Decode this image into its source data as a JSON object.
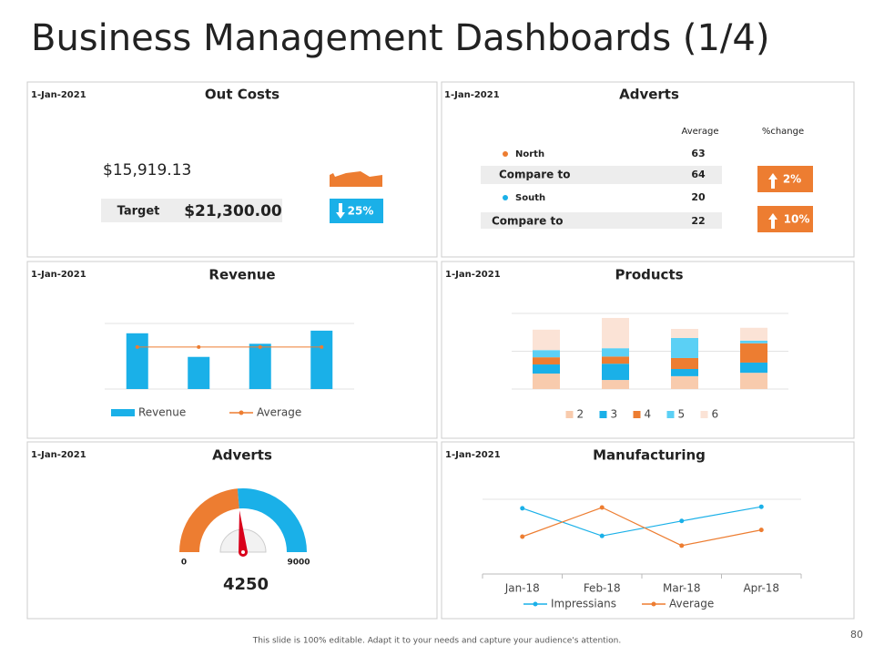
{
  "title": "Business Management Dashboards (1/4)",
  "footer": "This slide is 100% editable. Adapt it to your needs and capture your audience's attention.",
  "page_number": 80,
  "out_costs": {
    "date": "1-Jan-2021",
    "title": "Out Costs",
    "amount": "$15,919.13",
    "target_label": "Target",
    "target": "$21,300.00",
    "change": "25%"
  },
  "adverts_table": {
    "date": "1-Jan-2021",
    "title": "Adverts",
    "columns": [
      "Average",
      "%change"
    ],
    "rows": [
      {
        "label": "North",
        "value": 63
      },
      {
        "label": "Compare to",
        "value": 64,
        "change": "2%"
      },
      {
        "label": "South",
        "value": 20
      },
      {
        "label": "Compare to",
        "value": 22,
        "change": "10%"
      }
    ]
  },
  "chart_data": [
    {
      "type": "bar",
      "date": "1-Jan-2021",
      "title": "Revenue",
      "categories": [
        null,
        null,
        null,
        null
      ],
      "series": [
        {
          "name": "Revenue",
          "type": "bar",
          "color": "#1ab0e8",
          "values": [
            85,
            49,
            69,
            89
          ]
        },
        {
          "name": "Average",
          "type": "line",
          "color": "#ed7d31",
          "values": [
            64,
            64,
            64,
            64
          ]
        }
      ],
      "ylim": [
        0,
        100
      ],
      "grid": true,
      "legend": "bottom"
    },
    {
      "type": "stacked_bar",
      "date": "1-Jan-2021",
      "title": "Products",
      "categories": [
        null,
        null,
        null,
        null
      ],
      "series": [
        {
          "name": "2",
          "color": "#f8cbad",
          "values": [
            4.1,
            2.4,
            3.4,
            4.3
          ]
        },
        {
          "name": "3",
          "color": "#1ab0e8",
          "values": [
            2.4,
            4.3,
            1.9,
            2.7
          ]
        },
        {
          "name": "4",
          "color": "#ed7d31",
          "values": [
            1.9,
            1.9,
            2.9,
            5.1
          ]
        },
        {
          "name": "5",
          "color": "#5bd0f5",
          "values": [
            1.9,
            2.2,
            5.3,
            0.7
          ]
        },
        {
          "name": "6",
          "color": "#fbe3d6",
          "values": [
            5.4,
            8.0,
            2.4,
            3.4
          ]
        }
      ],
      "ylim": [
        0,
        20
      ],
      "grid": true,
      "legend": "bottom"
    },
    {
      "type": "gauge",
      "date": "1-Jan-2021",
      "title": "Adverts",
      "value": 4250,
      "min": 0,
      "max": 9000,
      "color": "#ed7d31",
      "rest_color": "#1ab0e8"
    },
    {
      "type": "line",
      "date": "1-Jan-2021",
      "title": "Manufacturing",
      "categories": [
        "Jan-18",
        "Feb-18",
        "Mar-18",
        "Apr-18"
      ],
      "series": [
        {
          "name": "Impressians",
          "color": "#1ab0e8",
          "values": [
            88,
            51,
            71,
            90
          ]
        },
        {
          "name": "Average",
          "color": "#ed7d31",
          "values": [
            50,
            89,
            38,
            59
          ]
        }
      ],
      "ylim": [
        0,
        100
      ],
      "grid": true,
      "legend": "bottom"
    }
  ]
}
